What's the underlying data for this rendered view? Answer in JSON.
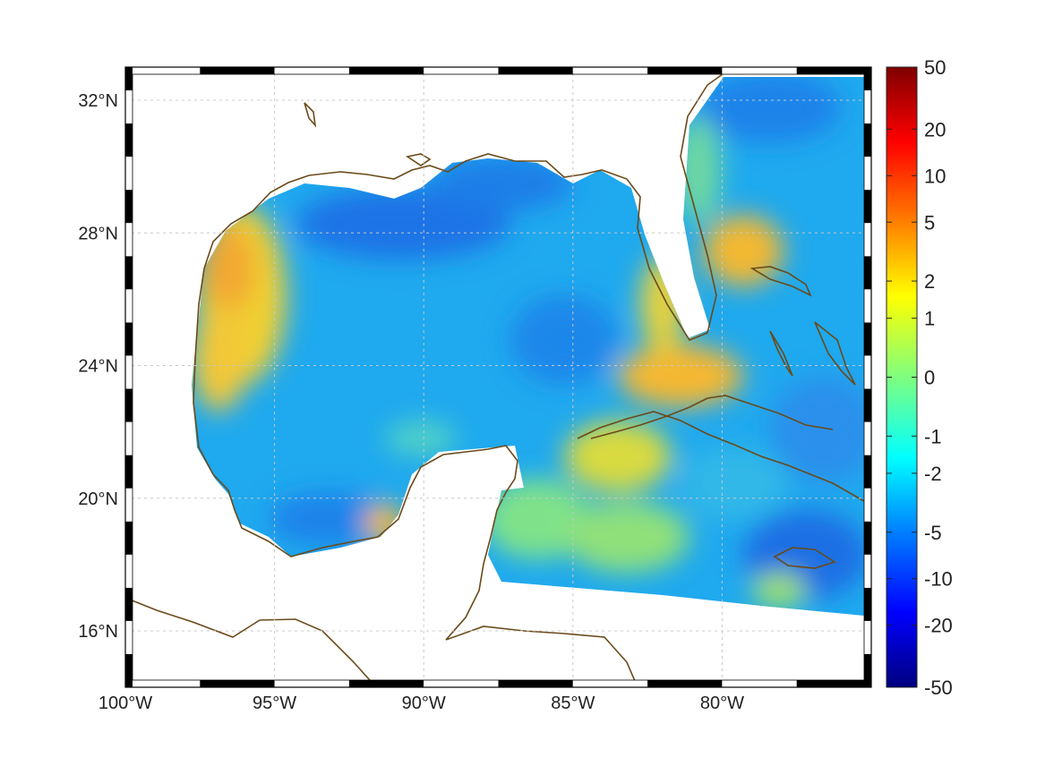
{
  "map": {
    "lon_labels": [
      "100°W",
      "95°W",
      "90°W",
      "85°W",
      "80°W"
    ],
    "lat_labels": [
      "32°N",
      "28°N",
      "24°N",
      "20°N",
      "16°N"
    ],
    "extent": {
      "lon_min": -100,
      "lon_max": -75,
      "lat_min": 14.3,
      "lat_max": 33
    },
    "grid": true,
    "coastline_color": "#6b4a1a",
    "land_color": "#ffffff"
  },
  "colorbar": {
    "ticks": [
      "50",
      "20",
      "10",
      "5",
      "2",
      "1",
      "0",
      "-1",
      "-2",
      "-5",
      "-10",
      "-20",
      "-50"
    ],
    "colormap": "jet",
    "colors": [
      "#7f0000",
      "#ff0000",
      "#ff7f00",
      "#ffff00",
      "#7fff7f",
      "#00ffff",
      "#007fff",
      "#0000ff",
      "#00007f"
    ]
  }
}
